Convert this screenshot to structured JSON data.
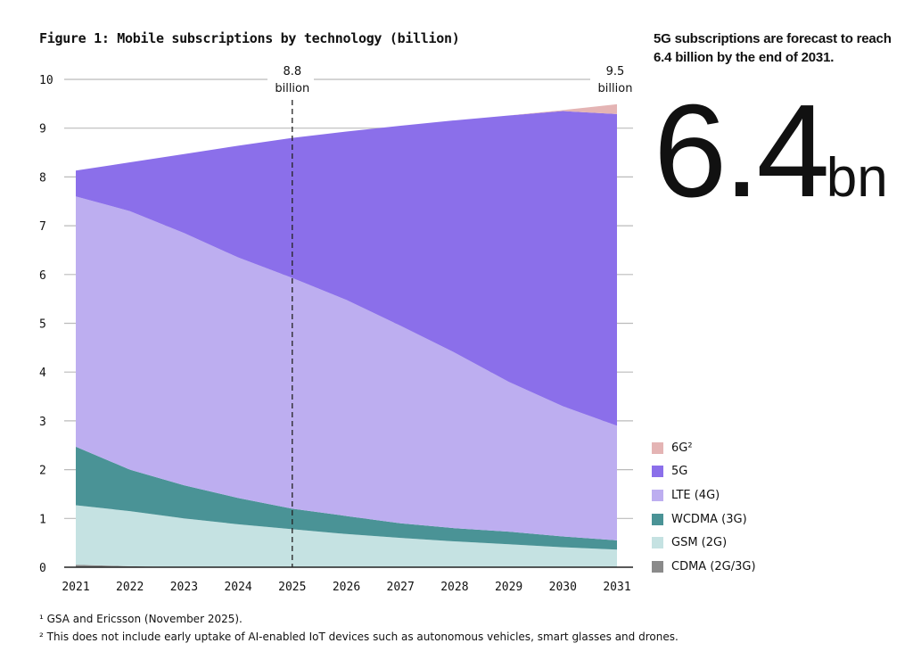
{
  "title": "Figure 1: Mobile subscriptions by technology (billion)",
  "headline": "5G subscriptions are forecast to reach 6.4 billion by the end of 2031.",
  "big_number": {
    "value": "6.4",
    "unit": "bn"
  },
  "footnotes": [
    "¹ GSA and Ericsson (November 2025).",
    "² This does not include early uptake of AI-enabled IoT devices such as autonomous vehicles, smart glasses and drones."
  ],
  "chart_data": {
    "type": "area",
    "stacked": true,
    "title": "Figure 1: Mobile subscriptions by technology (billion)",
    "x": [
      2021,
      2022,
      2023,
      2024,
      2025,
      2026,
      2027,
      2028,
      2029,
      2030,
      2031
    ],
    "ylim": [
      0,
      10
    ],
    "yticks": [
      0,
      1,
      2,
      3,
      4,
      5,
      6,
      7,
      8,
      9,
      10
    ],
    "grid": "horizontal",
    "legend_position": "right",
    "series": [
      {
        "name": "CDMA (2G/3G)",
        "color": "#8a8a8a",
        "values": [
          0.05,
          0.02,
          0,
          0,
          0,
          0,
          0,
          0,
          0,
          0,
          0
        ]
      },
      {
        "name": "GSM (2G)",
        "color": "#c5e2e2",
        "values": [
          1.22,
          1.13,
          1.0,
          0.88,
          0.78,
          0.68,
          0.6,
          0.53,
          0.47,
          0.41,
          0.36
        ]
      },
      {
        "name": "WCDMA (3G)",
        "color": "#4a9396",
        "values": [
          1.2,
          0.85,
          0.68,
          0.54,
          0.42,
          0.37,
          0.3,
          0.27,
          0.26,
          0.22,
          0.19
        ]
      },
      {
        "name": "LTE (4G)",
        "color": "#bdaef0",
        "values": [
          5.13,
          5.3,
          5.17,
          4.93,
          4.73,
          4.43,
          4.05,
          3.6,
          3.07,
          2.67,
          2.35
        ]
      },
      {
        "name": "5G",
        "color": "#8b6fea",
        "values": [
          0.53,
          1.0,
          1.62,
          2.29,
          2.87,
          3.45,
          4.1,
          4.76,
          5.46,
          6.05,
          6.39
        ]
      },
      {
        "name": "6G²",
        "color": "#e4b4b4",
        "values": [
          0,
          0,
          0,
          0,
          0,
          0,
          0,
          0,
          0,
          0.02,
          0.2
        ]
      }
    ],
    "annotations": [
      {
        "x": 2025,
        "value": "8.8",
        "text": "billion",
        "style": "dashed-line"
      },
      {
        "x": 2031,
        "value": "9.5",
        "text": "billion"
      }
    ]
  }
}
